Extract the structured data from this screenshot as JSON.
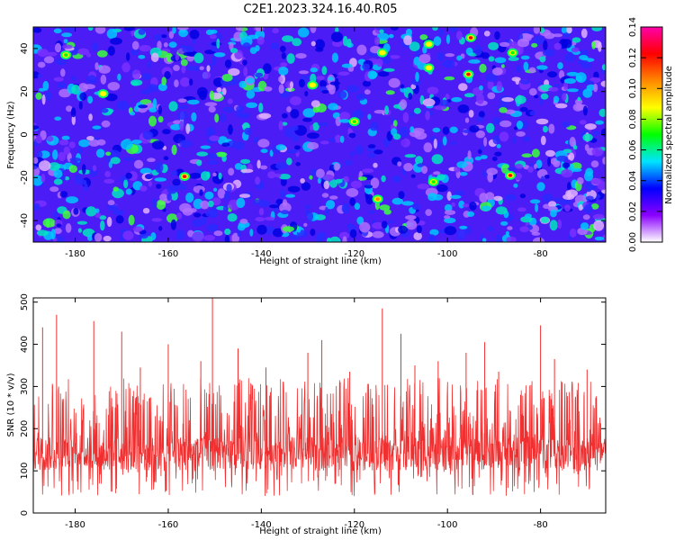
{
  "figure": {
    "title": "C2E1.2023.324.16.40.R05"
  },
  "chart_data": [
    {
      "type": "heatmap",
      "title": "C2E1.2023.324.16.40.R05",
      "xlabel": "Height of straight line (km)",
      "ylabel": "Frequency (Hz)",
      "xlim": [
        -189,
        -66
      ],
      "ylim": [
        -50,
        50
      ],
      "x_ticks": [
        -180,
        -160,
        -140,
        -120,
        -100,
        -80
      ],
      "y_ticks": [
        -40,
        -20,
        0,
        20,
        40
      ],
      "colorbar": {
        "label": "Normalized spectral amplitude",
        "range": [
          0,
          0.14
        ],
        "ticks": [
          0.0,
          0.02,
          0.04,
          0.06,
          0.08,
          0.1,
          0.12,
          0.14
        ],
        "colormap": [
          "#ffffff",
          "#8a00ff",
          "#0000ff",
          "#00e5ff",
          "#00ff00",
          "#ffff00",
          "#ff8800",
          "#ff0000",
          "#ff00aa"
        ]
      },
      "background_color": "#4b1cf5",
      "grid": false,
      "notable_peaks": [
        {
          "x": -156.5,
          "y": -19.5,
          "value": 0.13
        },
        {
          "x": -95,
          "y": 45,
          "value": 0.13
        },
        {
          "x": -95.5,
          "y": 28,
          "value": 0.12
        },
        {
          "x": -86.5,
          "y": -19,
          "value": 0.12
        },
        {
          "x": -115,
          "y": -30,
          "value": 0.1
        },
        {
          "x": -114,
          "y": 38,
          "value": 0.09
        },
        {
          "x": -129,
          "y": 23,
          "value": 0.09
        },
        {
          "x": -104,
          "y": 42,
          "value": 0.08
        },
        {
          "x": -104,
          "y": 31,
          "value": 0.08
        },
        {
          "x": -174,
          "y": 19,
          "value": 0.08
        },
        {
          "x": -182,
          "y": 37,
          "value": 0.07
        },
        {
          "x": -86,
          "y": 38,
          "value": 0.07
        },
        {
          "x": -103,
          "y": -22,
          "value": 0.07
        },
        {
          "x": -120,
          "y": 6,
          "value": 0.07
        }
      ]
    },
    {
      "type": "line",
      "xlabel": "Height of straight line (km)",
      "ylabel": "SNR (10 * v/v)",
      "xlim": [
        -189,
        -66
      ],
      "ylim": [
        0,
        510
      ],
      "x_ticks": [
        -180,
        -160,
        -140,
        -120,
        -100,
        -80
      ],
      "y_ticks": [
        0,
        100,
        200,
        300,
        400,
        500
      ],
      "color": "#f03030",
      "grid": false,
      "baseline_range": [
        40,
        240
      ],
      "typical_level": 140,
      "peaks": [
        {
          "x": -150.5,
          "y": 510
        },
        {
          "x": -114,
          "y": 485
        },
        {
          "x": -184,
          "y": 470
        },
        {
          "x": -176,
          "y": 455
        },
        {
          "x": -80,
          "y": 445
        },
        {
          "x": -187,
          "y": 440
        },
        {
          "x": -170,
          "y": 430
        },
        {
          "x": -92,
          "y": 405
        },
        {
          "x": -110,
          "y": 425
        },
        {
          "x": -127,
          "y": 410
        },
        {
          "x": -160,
          "y": 400
        },
        {
          "x": -145,
          "y": 390
        },
        {
          "x": -130,
          "y": 380
        },
        {
          "x": -96,
          "y": 380
        },
        {
          "x": -77,
          "y": 365
        },
        {
          "x": -102,
          "y": 360
        },
        {
          "x": -139,
          "y": 345
        },
        {
          "x": -70,
          "y": 340
        },
        {
          "x": -121,
          "y": 335
        },
        {
          "x": -89,
          "y": 335
        },
        {
          "x": -153,
          "y": 360
        },
        {
          "x": -166,
          "y": 345
        },
        {
          "x": -107,
          "y": 350
        }
      ]
    }
  ]
}
